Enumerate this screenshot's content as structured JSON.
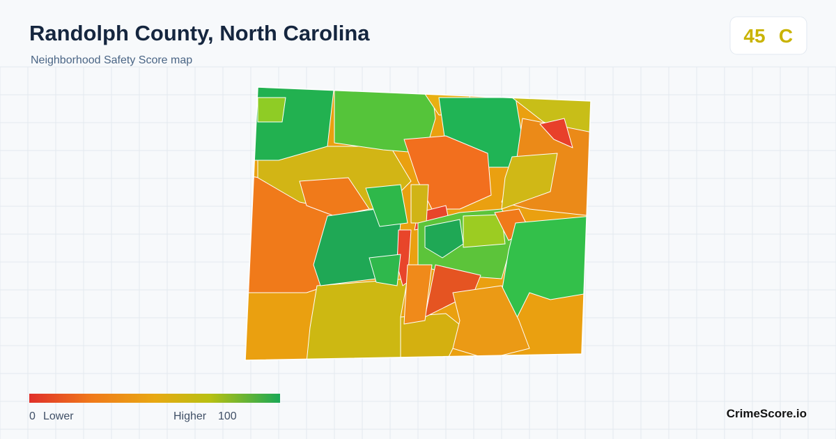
{
  "header": {
    "title": "Randolph County, North Carolina",
    "subtitle": "Neighborhood Safety Score map"
  },
  "score": {
    "value": 45,
    "grade": "C"
  },
  "legend": {
    "min": 0,
    "min_label": "Lower",
    "max_label": "Higher",
    "max": 100
  },
  "brand": "CrimeScore.io"
}
